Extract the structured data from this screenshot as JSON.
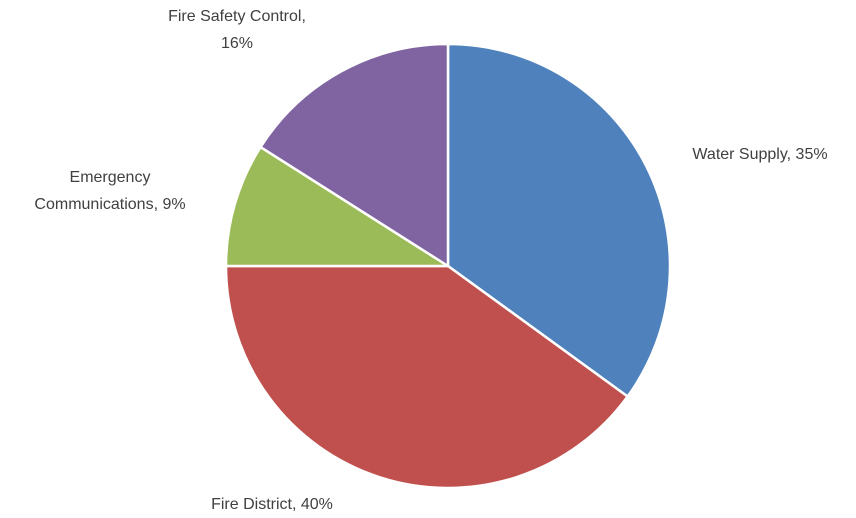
{
  "chart_data": {
    "type": "pie",
    "values": [
      35,
      40,
      9,
      16
    ],
    "value_labels": [
      [
        "Water Supply, 35%"
      ],
      [
        "Fire District, 40%"
      ],
      [
        "Emergency",
        "Communications, 9%"
      ],
      [
        "Fire Safety Control,",
        "16%"
      ]
    ],
    "colors": [
      "#4f81bd",
      "#c0504d",
      "#9bbb59",
      "#8064a2"
    ]
  }
}
